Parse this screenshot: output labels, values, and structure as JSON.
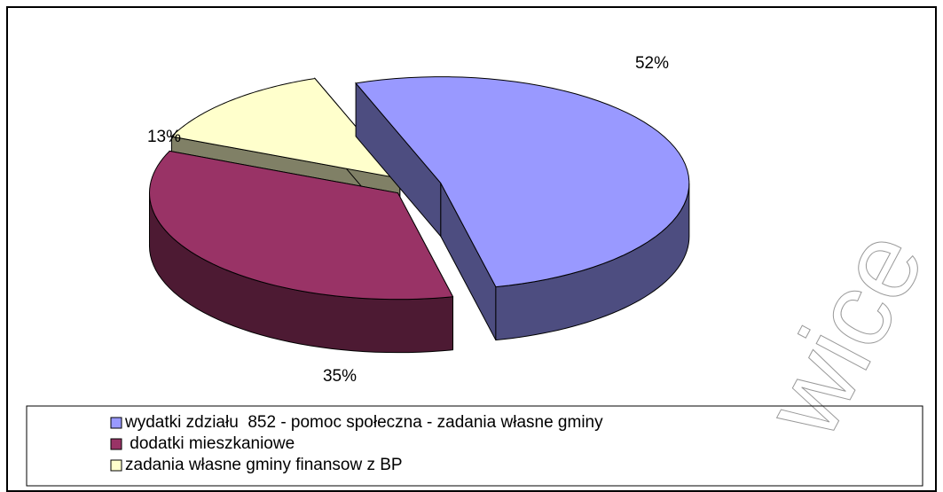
{
  "chart_data": {
    "type": "pie",
    "categories": [
      "wydatki zdziału  852 - pomoc społeczna - zadania własne gminy",
      " dodatki mieszkaniowe",
      "zadania własne gminy finansow z BP"
    ],
    "values": [
      52,
      35,
      13
    ],
    "value_labels": [
      "52%",
      "35%",
      "13%"
    ],
    "colors": [
      "#9999ff",
      "#993366",
      "#ffffcc"
    ],
    "legend": "bottom"
  },
  "watermark": "wice"
}
